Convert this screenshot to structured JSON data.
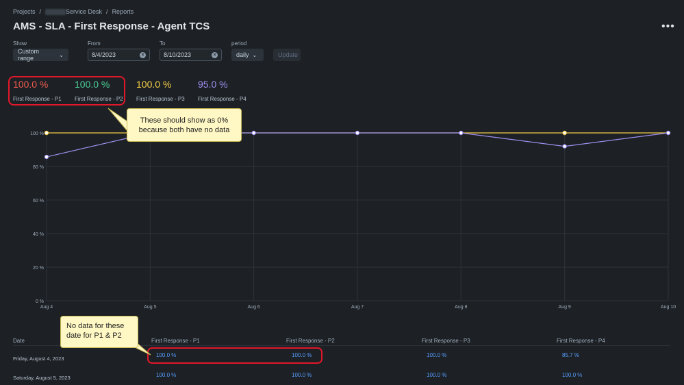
{
  "breadcrumb": {
    "projects": "Projects",
    "sep": "/",
    "service_desk": "Service Desk",
    "reports": "Reports"
  },
  "title": "AMS - SLA - First Response - Agent TCS",
  "more_label": "•••",
  "filters": {
    "show_label": "Show",
    "show_value": "Custom range",
    "from_label": "From",
    "from_value": "8/4/2023",
    "to_label": "To",
    "to_value": "8/10/2023",
    "period_label": "period",
    "period_value": "daily",
    "update_label": "Update"
  },
  "stats": [
    {
      "value": "100.0 %",
      "label": "First Response - P1",
      "color": "#f15b50"
    },
    {
      "value": "100.0 %",
      "label": "First Response - P2",
      "color": "#4bce97"
    },
    {
      "value": "100.0 %",
      "label": "First Response - P3",
      "color": "#f5cd47"
    },
    {
      "value": "95.0 %",
      "label": "First Response - P4",
      "color": "#9f8fef"
    }
  ],
  "annotations": {
    "top": "These should show as 0% because both have no data",
    "bottom": "No data for these date for P1 & P2"
  },
  "chart_data": {
    "type": "line",
    "x": [
      "Aug 4",
      "Aug 5",
      "Aug 6",
      "Aug 7",
      "Aug 8",
      "Aug 9",
      "Aug 10"
    ],
    "y_ticks": [
      "0 %",
      "20 %",
      "40 %",
      "60 %",
      "80 %",
      "100 %"
    ],
    "ylim": [
      0,
      100
    ],
    "grid": true,
    "series": [
      {
        "name": "First Response - P3",
        "color": "#f5cd47",
        "values": [
          100,
          100,
          100,
          100,
          100,
          100,
          100
        ],
        "markers": [
          0,
          5
        ]
      },
      {
        "name": "First Response - P4",
        "color": "#9f8fef",
        "values": [
          85.7,
          100,
          100,
          100,
          100,
          92,
          100
        ],
        "markers": [
          0,
          1,
          2,
          3,
          4,
          5,
          6
        ]
      }
    ]
  },
  "table": {
    "headers": [
      "Date",
      "First Response - P1",
      "First Response - P2",
      "First Response - P3",
      "First Response - P4"
    ],
    "rows": [
      [
        "Friday, August 4, 2023",
        "100.0 %",
        "100.0 %",
        "100.0 %",
        "85.7 %"
      ],
      [
        "Saturday, August 5, 2023",
        "100.0 %",
        "100.0 %",
        "100.0 %",
        "100.0 %"
      ]
    ]
  }
}
